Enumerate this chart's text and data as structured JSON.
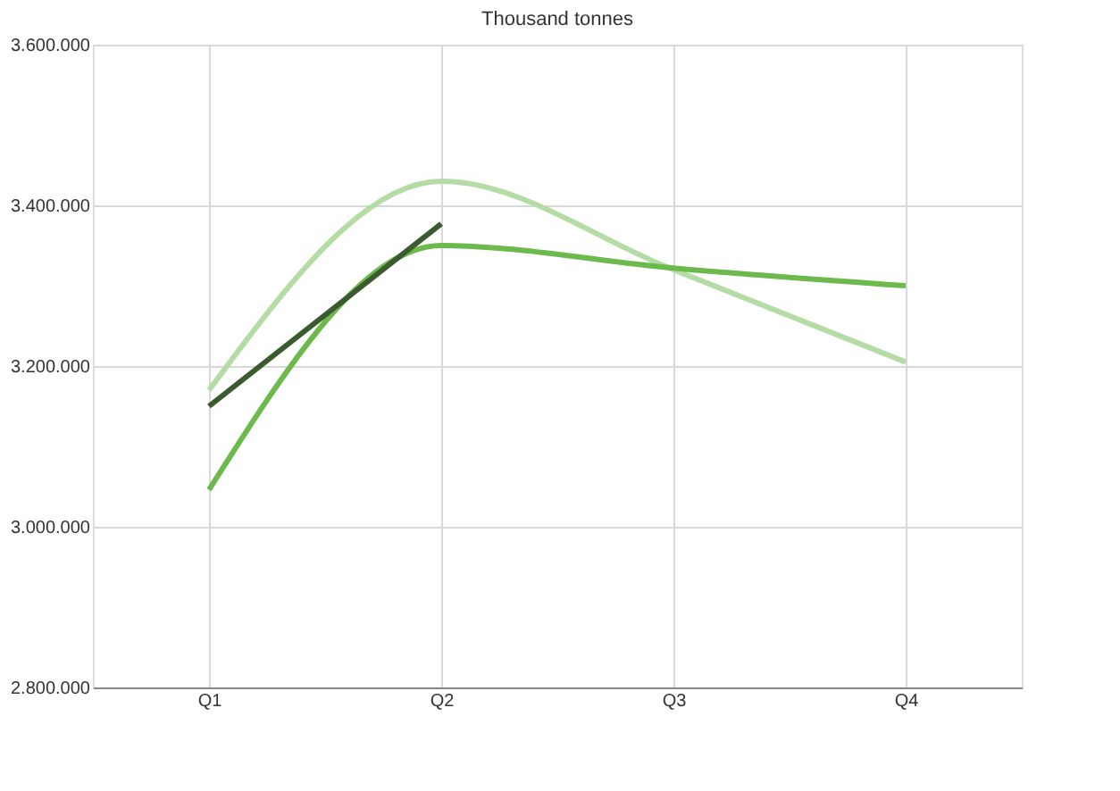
{
  "chart_data": {
    "type": "line",
    "title": "Thousand tonnes",
    "categories": [
      "Q1",
      "Q2",
      "Q3",
      "Q4"
    ],
    "series": [
      {
        "color": "#b5dca4",
        "values": [
          3170000,
          3430000,
          3320000,
          3205000
        ]
      },
      {
        "color": "#6cb94c",
        "values": [
          3046000,
          3350000,
          3322000,
          3300000
        ]
      },
      {
        "color": "#3b5a2f",
        "values": [
          3150000,
          3377000,
          null,
          null
        ]
      }
    ],
    "ylim": [
      2800000,
      3600000
    ],
    "yticks": [
      {
        "value": 2800000,
        "label": "2.800.000"
      },
      {
        "value": 3000000,
        "label": "3.000.000"
      },
      {
        "value": 3200000,
        "label": "3.200.000"
      },
      {
        "value": 3400000,
        "label": "3.400.000"
      },
      {
        "value": 3600000,
        "label": "3.600.000"
      }
    ],
    "grid": true,
    "marker": "none",
    "line_style": "solid"
  }
}
